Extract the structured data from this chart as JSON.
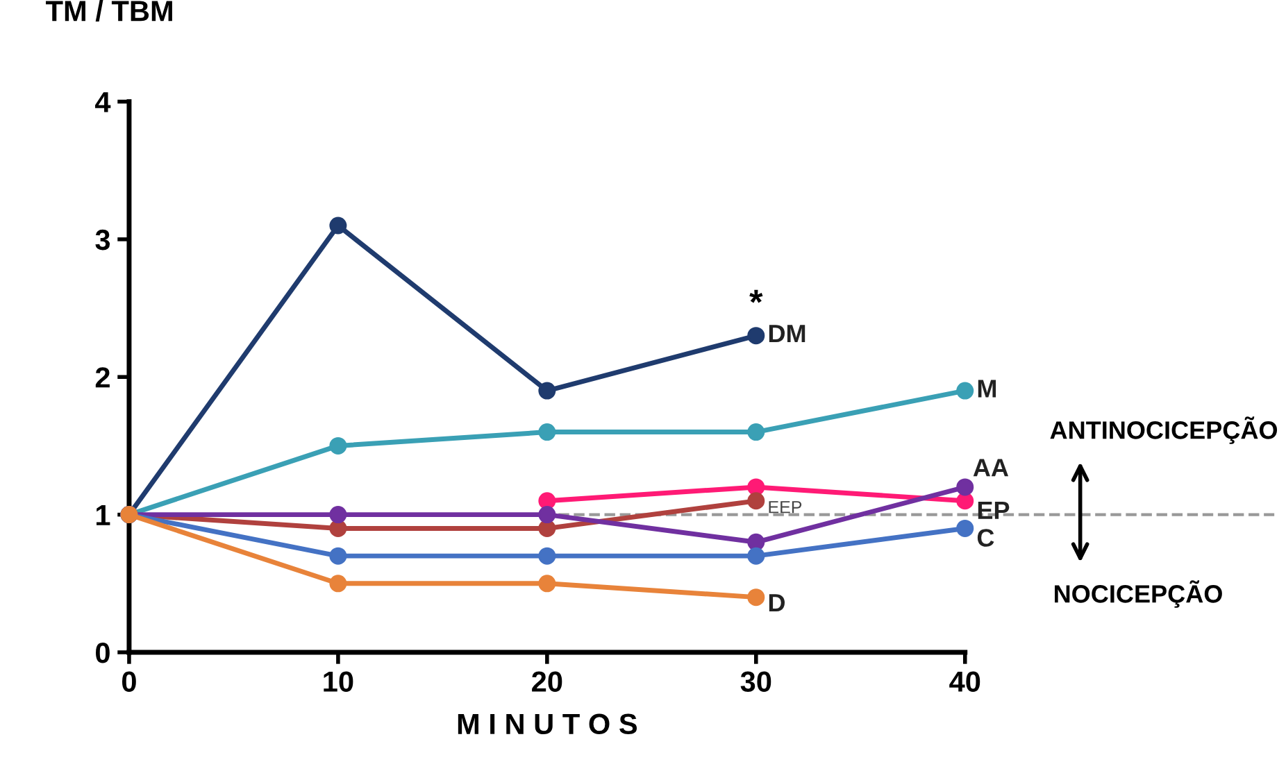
{
  "chart_data": {
    "type": "line",
    "xlabel": "M I N U T O S",
    "ylabel": "TM / TBM",
    "xlim": [
      0,
      40
    ],
    "ylim": [
      0,
      4
    ],
    "xticks": [
      0,
      10,
      20,
      30,
      40
    ],
    "yticks": [
      0,
      1,
      2,
      3,
      4
    ],
    "grid": false,
    "legend": false,
    "marker": "circle",
    "line_style": "solid",
    "series": [
      {
        "name": "DM",
        "color": "#1f3b6e",
        "x": [
          0,
          10,
          20,
          30
        ],
        "values": [
          1,
          3.1,
          1.9,
          2.3
        ]
      },
      {
        "name": "M",
        "color": "#3aa0b5",
        "x": [
          0,
          10,
          20,
          30,
          40
        ],
        "values": [
          1,
          1.5,
          1.6,
          1.6,
          1.9
        ]
      },
      {
        "name": "EP",
        "color": "#ff1a75",
        "x": [
          20,
          30,
          40
        ],
        "values": [
          1.1,
          1.2,
          1.1
        ]
      },
      {
        "name": "EEP",
        "color": "#b0413e",
        "x": [
          0,
          10,
          20,
          30
        ],
        "values": [
          1,
          0.9,
          0.9,
          1.1
        ]
      },
      {
        "name": "AA",
        "color": "#7030a0",
        "x": [
          0,
          10,
          20,
          30,
          40
        ],
        "values": [
          1,
          1.0,
          1.0,
          0.8,
          1.2
        ]
      },
      {
        "name": "C",
        "color": "#4472c4",
        "x": [
          0,
          10,
          20,
          30,
          40
        ],
        "values": [
          1,
          0.7,
          0.7,
          0.7,
          0.9
        ]
      },
      {
        "name": "D",
        "color": "#e8833a",
        "x": [
          0,
          10,
          20,
          30
        ],
        "values": [
          1,
          0.5,
          0.5,
          0.4
        ]
      }
    ],
    "ref_lines": [
      {
        "axis": "y",
        "value": 1,
        "color": "#999999",
        "line_style": "dashed"
      }
    ],
    "annotations": [
      "*",
      "ANTINOCICEPÇÃO",
      "NOCICEPÇÃO"
    ]
  }
}
